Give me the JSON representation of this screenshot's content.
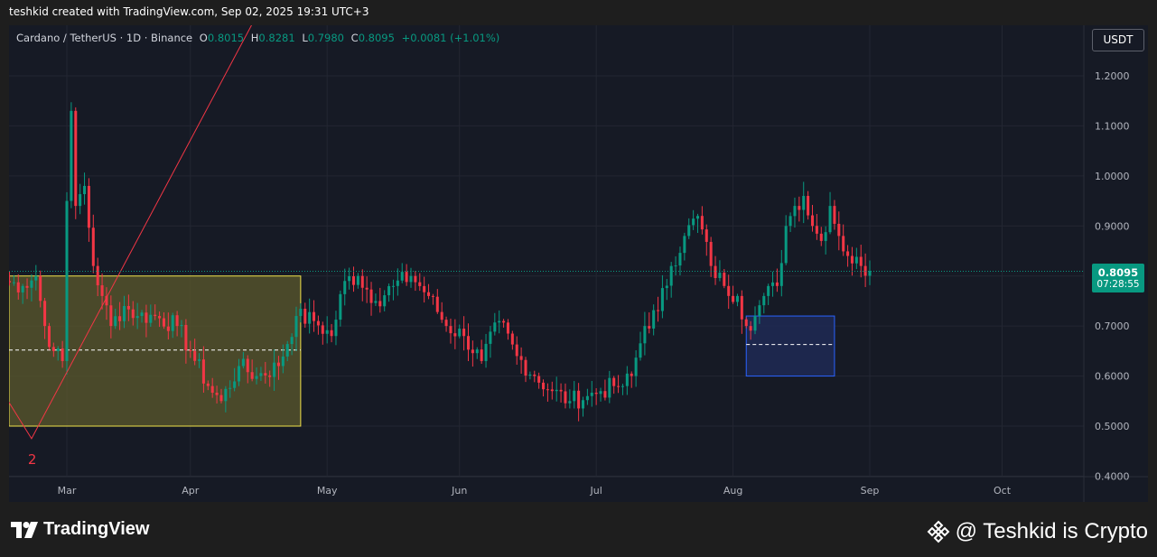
{
  "header": {
    "caption": "teshkid created with TradingView.com, Sep 02, 2025 19:31 UTC+3"
  },
  "legend": {
    "symbol": "Cardano / TetherUS · 1D · Binance",
    "open_label": "O",
    "open_value": "0.8015",
    "high_label": "H",
    "high_value": "0.8281",
    "low_label": "L",
    "low_value": "0.7980",
    "close_label": "C",
    "close_value": "0.8095",
    "change": "+0.0081 (+1.01%)"
  },
  "currency": "USDT",
  "last_price": {
    "price": "0.8095",
    "countdown": "07:28:55"
  },
  "footer": {
    "brand": "TradingView",
    "watermark": "@ Teshkid is Crypto"
  },
  "annotations": {
    "wave_label": "2"
  },
  "colors": {
    "up": "#089981",
    "down": "#f23645",
    "background": "#161a25",
    "grid": "#232632",
    "yellow_zone_fill": "#5c5a2c",
    "yellow_zone_border": "#f0e24a",
    "blue_zone_fill": "#1e2a55",
    "blue_zone_border": "#2962ff",
    "trendline": "#f23645"
  },
  "chart_data": {
    "type": "candlestick",
    "title": "",
    "xlabel": "",
    "ylabel": "",
    "ylim": [
      0.4,
      1.28
    ],
    "y_ticks": [
      "1.2000",
      "1.1000",
      "1.0000",
      "0.9000",
      "0.7000",
      "0.6000",
      "0.5000",
      "0.4000"
    ],
    "x_ticks": [
      "Mar",
      "Apr",
      "May",
      "Jun",
      "Jul",
      "Aug",
      "Sep",
      "Oct"
    ],
    "x_tick_days": [
      0,
      28,
      59,
      89,
      120,
      151,
      182,
      212
    ],
    "x_range_days": [
      -14,
      232
    ],
    "series": [
      {
        "key_points": [
          {
            "day": -14,
            "close": 0.79
          },
          {
            "day": -10,
            "close": 0.78
          },
          {
            "day": -7,
            "close": 0.8
          },
          {
            "day": -5,
            "close": 0.7
          },
          {
            "day": -3,
            "close": 0.65
          },
          {
            "day": -1,
            "close": 0.63
          },
          {
            "day": 0,
            "close": 0.95
          },
          {
            "day": 1,
            "close": 1.13
          },
          {
            "day": 2,
            "close": 0.94
          },
          {
            "day": 4,
            "close": 0.98
          },
          {
            "day": 6,
            "close": 0.82
          },
          {
            "day": 8,
            "close": 0.76
          },
          {
            "day": 10,
            "close": 0.7
          },
          {
            "day": 13,
            "close": 0.74
          },
          {
            "day": 16,
            "close": 0.72
          },
          {
            "day": 20,
            "close": 0.72
          },
          {
            "day": 25,
            "close": 0.7
          },
          {
            "day": 28,
            "close": 0.65
          },
          {
            "day": 32,
            "close": 0.58
          },
          {
            "day": 35,
            "close": 0.55
          },
          {
            "day": 39,
            "close": 0.62
          },
          {
            "day": 43,
            "close": 0.6
          },
          {
            "day": 48,
            "close": 0.62
          },
          {
            "day": 52,
            "close": 0.72
          },
          {
            "day": 56,
            "close": 0.71
          },
          {
            "day": 60,
            "close": 0.68
          },
          {
            "day": 63,
            "close": 0.79
          },
          {
            "day": 66,
            "close": 0.8
          },
          {
            "day": 70,
            "close": 0.75
          },
          {
            "day": 74,
            "close": 0.78
          },
          {
            "day": 78,
            "close": 0.8
          },
          {
            "day": 82,
            "close": 0.76
          },
          {
            "day": 86,
            "close": 0.7
          },
          {
            "day": 90,
            "close": 0.68
          },
          {
            "day": 94,
            "close": 0.63
          },
          {
            "day": 98,
            "close": 0.71
          },
          {
            "day": 102,
            "close": 0.64
          },
          {
            "day": 106,
            "close": 0.6
          },
          {
            "day": 110,
            "close": 0.57
          },
          {
            "day": 114,
            "close": 0.55
          },
          {
            "day": 118,
            "close": 0.56
          },
          {
            "day": 121,
            "close": 0.57
          },
          {
            "day": 124,
            "close": 0.58
          },
          {
            "day": 126,
            "close": 0.58
          },
          {
            "day": 128,
            "close": 0.6
          },
          {
            "day": 131,
            "close": 0.7
          },
          {
            "day": 134,
            "close": 0.73
          },
          {
            "day": 137,
            "close": 0.82
          },
          {
            "day": 140,
            "close": 0.88
          },
          {
            "day": 143,
            "close": 0.92
          },
          {
            "day": 146,
            "close": 0.82
          },
          {
            "day": 149,
            "close": 0.78
          },
          {
            "day": 152,
            "close": 0.76
          },
          {
            "day": 154,
            "close": 0.7
          },
          {
            "day": 156,
            "close": 0.72
          },
          {
            "day": 158,
            "close": 0.76
          },
          {
            "day": 161,
            "close": 0.78
          },
          {
            "day": 163,
            "close": 0.9
          },
          {
            "day": 165,
            "close": 0.94
          },
          {
            "day": 167,
            "close": 0.96
          },
          {
            "day": 169,
            "close": 0.9
          },
          {
            "day": 171,
            "close": 0.87
          },
          {
            "day": 173,
            "close": 0.94
          },
          {
            "day": 175,
            "close": 0.88
          },
          {
            "day": 177,
            "close": 0.84
          },
          {
            "day": 180,
            "close": 0.82
          },
          {
            "day": 182,
            "close": 0.81
          }
        ]
      }
    ],
    "zones": [
      {
        "name": "yellow-zone",
        "day_start": -14,
        "day_end": 53,
        "top": 0.8,
        "bottom": 0.5,
        "mid": 0.652
      },
      {
        "name": "blue-zone",
        "day_start": 154,
        "day_end": 174,
        "top": 0.72,
        "bottom": 0.6,
        "mid": 0.663
      }
    ],
    "trendline": {
      "points": [
        {
          "day": -14,
          "price": 0.56
        },
        {
          "day": -8,
          "price": 0.475
        },
        {
          "day": 43,
          "price": 1.32
        }
      ]
    },
    "last_price_line": 0.8095
  }
}
